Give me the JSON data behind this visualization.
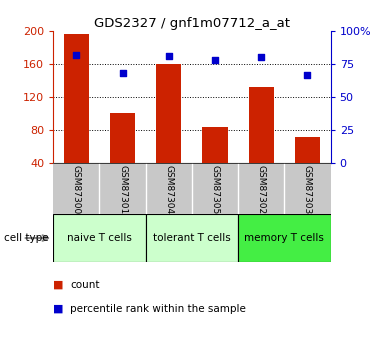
{
  "title": "GDS2327 / gnf1m07712_a_at",
  "samples": [
    "GSM87300",
    "GSM87301",
    "GSM87304",
    "GSM87305",
    "GSM87302",
    "GSM87303"
  ],
  "counts": [
    197,
    101,
    160,
    84,
    132,
    72
  ],
  "percentiles": [
    82,
    68,
    81,
    78,
    80,
    67
  ],
  "bar_baseline": 40,
  "ylim_left": [
    40,
    200
  ],
  "ylim_right": [
    0,
    100
  ],
  "yticks_left": [
    40,
    80,
    120,
    160,
    200
  ],
  "yticks_right": [
    0,
    25,
    50,
    75,
    100
  ],
  "ytick_labels_right": [
    "0",
    "25",
    "50",
    "75",
    "100%"
  ],
  "bar_color": "#cc2200",
  "dot_color": "#0000cc",
  "cell_types": [
    "naive T cells",
    "tolerant T cells",
    "memory T cells"
  ],
  "cell_label": "cell type",
  "legend_count": "count",
  "legend_percentile": "percentile rank within the sample",
  "tick_area_bg": "#c8c8c8",
  "cell_naive_color": "#ccffcc",
  "cell_tolerant_color": "#ccffcc",
  "cell_memory_color": "#44ee44",
  "fig_width": 3.8,
  "fig_height": 3.45,
  "dpi": 100
}
